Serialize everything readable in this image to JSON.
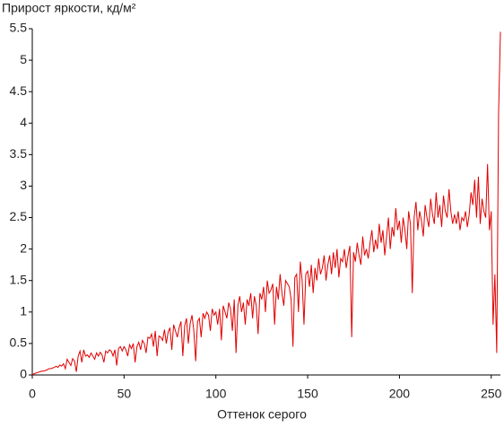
{
  "chart_data": {
    "type": "line",
    "title": "Прирост яркости, кд/м²",
    "xlabel": "Оттенок серого",
    "x": [
      0,
      1,
      2,
      3,
      4,
      5,
      6,
      7,
      8,
      9,
      10,
      11,
      12,
      13,
      14,
      15,
      16,
      17,
      18,
      19,
      20,
      21,
      22,
      23,
      24,
      25,
      26,
      27,
      28,
      29,
      30,
      31,
      32,
      33,
      34,
      35,
      36,
      37,
      38,
      39,
      40,
      41,
      42,
      43,
      44,
      45,
      46,
      47,
      48,
      49,
      50,
      51,
      52,
      53,
      54,
      55,
      56,
      57,
      58,
      59,
      60,
      61,
      62,
      63,
      64,
      65,
      66,
      67,
      68,
      69,
      70,
      71,
      72,
      73,
      74,
      75,
      76,
      77,
      78,
      79,
      80,
      81,
      82,
      83,
      84,
      85,
      86,
      87,
      88,
      89,
      90,
      91,
      92,
      93,
      94,
      95,
      96,
      97,
      98,
      99,
      100,
      101,
      102,
      103,
      104,
      105,
      106,
      107,
      108,
      109,
      110,
      111,
      112,
      113,
      114,
      115,
      116,
      117,
      118,
      119,
      120,
      121,
      122,
      123,
      124,
      125,
      126,
      127,
      128,
      129,
      130,
      131,
      132,
      133,
      134,
      135,
      136,
      137,
      138,
      139,
      140,
      141,
      142,
      143,
      144,
      145,
      146,
      147,
      148,
      149,
      150,
      151,
      152,
      153,
      154,
      155,
      156,
      157,
      158,
      159,
      160,
      161,
      162,
      163,
      164,
      165,
      166,
      167,
      168,
      169,
      170,
      171,
      172,
      173,
      174,
      175,
      176,
      177,
      178,
      179,
      180,
      181,
      182,
      183,
      184,
      185,
      186,
      187,
      188,
      189,
      190,
      191,
      192,
      193,
      194,
      195,
      196,
      197,
      198,
      199,
      200,
      201,
      202,
      203,
      204,
      205,
      206,
      207,
      208,
      209,
      210,
      211,
      212,
      213,
      214,
      215,
      216,
      217,
      218,
      219,
      220,
      221,
      222,
      223,
      224,
      225,
      226,
      227,
      228,
      229,
      230,
      231,
      232,
      233,
      234,
      235,
      236,
      237,
      238,
      239,
      240,
      241,
      242,
      243,
      244,
      245,
      246,
      247,
      248,
      249,
      250,
      251,
      252,
      253,
      254,
      255
    ],
    "series": [
      {
        "color": "#e00000",
        "values": [
          0,
          0.02,
          0.03,
          0.04,
          0.05,
          0.06,
          0.06,
          0.07,
          0.08,
          0.1,
          0.1,
          0.11,
          0.12,
          0.14,
          0.12,
          0.16,
          0.14,
          0.18,
          0.1,
          0.25,
          0.2,
          0.15,
          0.26,
          0.22,
          0.05,
          0.3,
          0.38,
          0.2,
          0.4,
          0.3,
          0.32,
          0.28,
          0.35,
          0.3,
          0.25,
          0.35,
          0.3,
          0.36,
          0.32,
          0.2,
          0.38,
          0.35,
          0.4,
          0.38,
          0.3,
          0.4,
          0.15,
          0.42,
          0.45,
          0.38,
          0.45,
          0.4,
          0.3,
          0.48,
          0.42,
          0.5,
          0.2,
          0.45,
          0.52,
          0.4,
          0.55,
          0.5,
          0.35,
          0.6,
          0.58,
          0.65,
          0.45,
          0.7,
          0.3,
          0.62,
          0.6,
          0.55,
          0.72,
          0.5,
          0.68,
          0.75,
          0.4,
          0.8,
          0.7,
          0.6,
          0.75,
          0.85,
          0.3,
          0.78,
          0.9,
          0.5,
          0.82,
          0.95,
          0.7,
          0.22,
          0.85,
          0.9,
          0.6,
          0.98,
          0.9,
          1.0,
          0.95,
          0.7,
          1.05,
          0.95,
          1.0,
          0.8,
          1.05,
          0.55,
          1.1,
          1.0,
          0.9,
          1.15,
          1.05,
          0.7,
          1.2,
          0.35,
          1.1,
          1.25,
          1.0,
          1.15,
          0.8,
          1.2,
          1.1,
          1.3,
          0.9,
          1.25,
          1.1,
          0.65,
          1.3,
          1.2,
          1.4,
          1.0,
          1.5,
          1.3,
          1.35,
          1.45,
          0.8,
          1.4,
          1.2,
          1.6,
          1.3,
          1.1,
          1.5,
          1.45,
          1.4,
          1.2,
          0.45,
          1.55,
          1.6,
          1.0,
          1.8,
          1.5,
          0.8,
          1.6,
          1.65,
          1.4,
          1.75,
          1.3,
          1.7,
          1.5,
          1.85,
          1.6,
          1.7,
          1.9,
          1.5,
          1.75,
          1.9,
          1.6,
          1.95,
          1.7,
          2.0,
          1.55,
          1.85,
          1.8,
          2.0,
          1.7,
          1.9,
          2.05,
          0.6,
          1.95,
          1.8,
          2.1,
          1.9,
          1.75,
          2.2,
          1.9,
          2.0,
          1.85,
          2.1,
          2.3,
          1.95,
          2.15,
          2.0,
          2.4,
          2.1,
          2.3,
          1.9,
          2.2,
          2.5,
          2.0,
          2.35,
          2.2,
          2.65,
          2.3,
          2.45,
          2.1,
          2.5,
          2.3,
          2.0,
          2.6,
          2.4,
          1.3,
          2.5,
          2.75,
          2.3,
          2.6,
          2.45,
          2.2,
          2.7,
          2.5,
          2.35,
          2.8,
          2.55,
          2.4,
          2.9,
          2.5,
          2.7,
          2.35,
          2.85,
          2.6,
          2.5,
          2.95,
          2.6,
          2.4,
          2.55,
          2.4,
          2.6,
          2.3,
          2.5,
          2.45,
          2.6,
          2.35,
          2.55,
          2.9,
          2.7,
          3.1,
          2.5,
          3.15,
          2.4,
          2.8,
          2.6,
          2.5,
          3.35,
          2.3,
          2.6,
          0.8,
          1.6,
          0.35,
          4.15,
          5.45
        ]
      }
    ],
    "xlim": [
      0,
      255
    ],
    "xticks": [
      0,
      50,
      100,
      150,
      200,
      250
    ],
    "ylim": [
      0,
      5.5
    ],
    "yticks": [
      0,
      0.5,
      1,
      1.5,
      2,
      2.5,
      3,
      3.5,
      4,
      4.5,
      5,
      5.5
    ],
    "grid": false
  }
}
